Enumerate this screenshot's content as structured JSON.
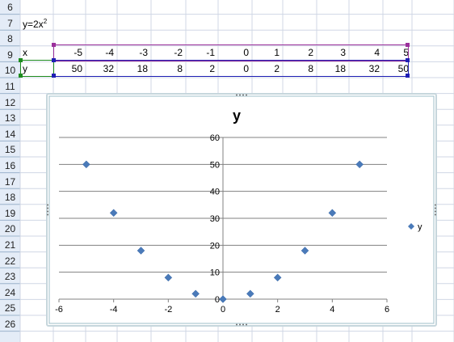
{
  "rows": [
    "6",
    "7",
    "8",
    "9",
    "10",
    "11",
    "12",
    "13",
    "14",
    "15",
    "16",
    "17",
    "18",
    "19",
    "20",
    "21",
    "22",
    "23",
    "24",
    "25",
    "26"
  ],
  "cells": {
    "formula_label": "y=2x",
    "formula_exp": "2",
    "x_label": "x",
    "y_label": "y",
    "x_values": [
      "-5",
      "-4",
      "-3",
      "-2",
      "-1",
      "0",
      "1",
      "2",
      "3",
      "4",
      "5"
    ],
    "y_values": [
      "50",
      "32",
      "18",
      "8",
      "2",
      "0",
      "2",
      "8",
      "18",
      "32",
      "50"
    ]
  },
  "colors": {
    "x_range_border": "#9b2f9b",
    "y_range_border": "#1f1fb4",
    "label_range_border": "#1e8c1e",
    "marker": "#4a7ab9",
    "gridline": "#808080",
    "chart_frame": "#9fbfc8"
  },
  "chart_data": {
    "type": "scatter",
    "title": "y",
    "series": [
      {
        "name": "y",
        "x": [
          -5,
          -4,
          -3,
          -2,
          -1,
          0,
          1,
          2,
          3,
          4,
          5
        ],
        "y": [
          50,
          32,
          18,
          8,
          2,
          0,
          2,
          8,
          18,
          32,
          50
        ]
      }
    ],
    "xlim": [
      -6,
      6
    ],
    "ylim": [
      0,
      60
    ],
    "x_ticks": [
      "-6",
      "-4",
      "-2",
      "0",
      "2",
      "4",
      "6"
    ],
    "y_ticks": [
      "0",
      "10",
      "20",
      "30",
      "40",
      "50",
      "60"
    ],
    "grid": "horizontal",
    "legend": "right"
  }
}
